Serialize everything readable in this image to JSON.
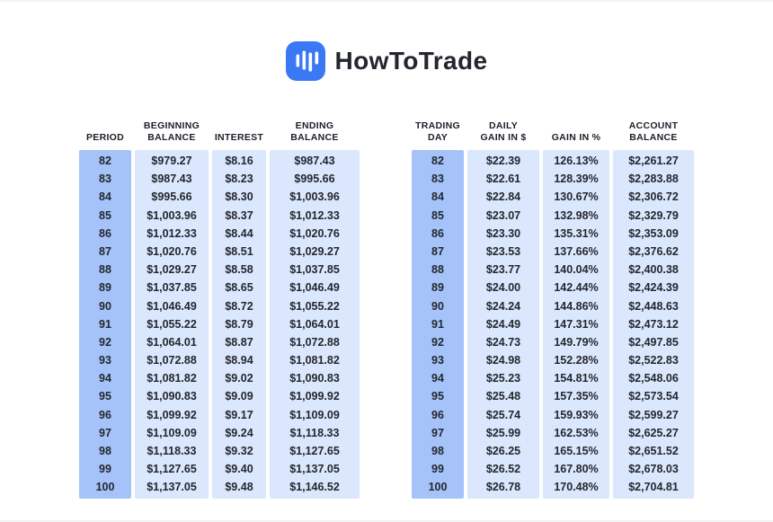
{
  "logo": {
    "text": "HowToTrade",
    "icon": "candlestick-bars-icon",
    "brand_color": "#3B78F5"
  },
  "colors": {
    "key_column_bg": "#A5C3F8",
    "value_column_bg": "#DBE7FC",
    "header_text": "#1B2029",
    "cell_text": "#23272F"
  },
  "chart_data": [
    {
      "type": "table",
      "columns": [
        "PERIOD",
        "BEGINNING\nBALANCE",
        "INTEREST",
        "ENDING\nBALANCE"
      ],
      "rows": [
        [
          "82",
          "$979.27",
          "$8.16",
          "$987.43"
        ],
        [
          "83",
          "$987.43",
          "$8.23",
          "$995.66"
        ],
        [
          "84",
          "$995.66",
          "$8.30",
          "$1,003.96"
        ],
        [
          "85",
          "$1,003.96",
          "$8.37",
          "$1,012.33"
        ],
        [
          "86",
          "$1,012.33",
          "$8.44",
          "$1,020.76"
        ],
        [
          "87",
          "$1,020.76",
          "$8.51",
          "$1,029.27"
        ],
        [
          "88",
          "$1,029.27",
          "$8.58",
          "$1,037.85"
        ],
        [
          "89",
          "$1,037.85",
          "$8.65",
          "$1,046.49"
        ],
        [
          "90",
          "$1,046.49",
          "$8.72",
          "$1,055.22"
        ],
        [
          "91",
          "$1,055.22",
          "$8.79",
          "$1,064.01"
        ],
        [
          "92",
          "$1,064.01",
          "$8.87",
          "$1,072.88"
        ],
        [
          "93",
          "$1,072.88",
          "$8.94",
          "$1,081.82"
        ],
        [
          "94",
          "$1,081.82",
          "$9.02",
          "$1,090.83"
        ],
        [
          "95",
          "$1,090.83",
          "$9.09",
          "$1,099.92"
        ],
        [
          "96",
          "$1,099.92",
          "$9.17",
          "$1,109.09"
        ],
        [
          "97",
          "$1,109.09",
          "$9.24",
          "$1,118.33"
        ],
        [
          "98",
          "$1,118.33",
          "$9.32",
          "$1,127.65"
        ],
        [
          "99",
          "$1,127.65",
          "$9.40",
          "$1,137.05"
        ],
        [
          "100",
          "$1,137.05",
          "$9.48",
          "$1,146.52"
        ]
      ]
    },
    {
      "type": "table",
      "columns": [
        "TRADING\nDAY",
        "DAILY\nGAIN IN $",
        "GAIN IN %",
        "ACCOUNT\nBALANCE"
      ],
      "rows": [
        [
          "82",
          "$22.39",
          "126.13%",
          "$2,261.27"
        ],
        [
          "83",
          "$22.61",
          "128.39%",
          "$2,283.88"
        ],
        [
          "84",
          "$22.84",
          "130.67%",
          "$2,306.72"
        ],
        [
          "85",
          "$23.07",
          "132.98%",
          "$2,329.79"
        ],
        [
          "86",
          "$23.30",
          "135.31%",
          "$2,353.09"
        ],
        [
          "87",
          "$23.53",
          "137.66%",
          "$2,376.62"
        ],
        [
          "88",
          "$23.77",
          "140.04%",
          "$2,400.38"
        ],
        [
          "89",
          "$24.00",
          "142.44%",
          "$2,424.39"
        ],
        [
          "90",
          "$24.24",
          "144.86%",
          "$2,448.63"
        ],
        [
          "91",
          "$24.49",
          "147.31%",
          "$2,473.12"
        ],
        [
          "92",
          "$24.73",
          "149.79%",
          "$2,497.85"
        ],
        [
          "93",
          "$24.98",
          "152.28%",
          "$2,522.83"
        ],
        [
          "94",
          "$25.23",
          "154.81%",
          "$2,548.06"
        ],
        [
          "95",
          "$25.48",
          "157.35%",
          "$2,573.54"
        ],
        [
          "96",
          "$25.74",
          "159.93%",
          "$2,599.27"
        ],
        [
          "97",
          "$25.99",
          "162.53%",
          "$2,625.27"
        ],
        [
          "98",
          "$26.25",
          "165.15%",
          "$2,651.52"
        ],
        [
          "99",
          "$26.52",
          "167.80%",
          "$2,678.03"
        ],
        [
          "100",
          "$26.78",
          "170.48%",
          "$2,704.81"
        ]
      ]
    }
  ]
}
